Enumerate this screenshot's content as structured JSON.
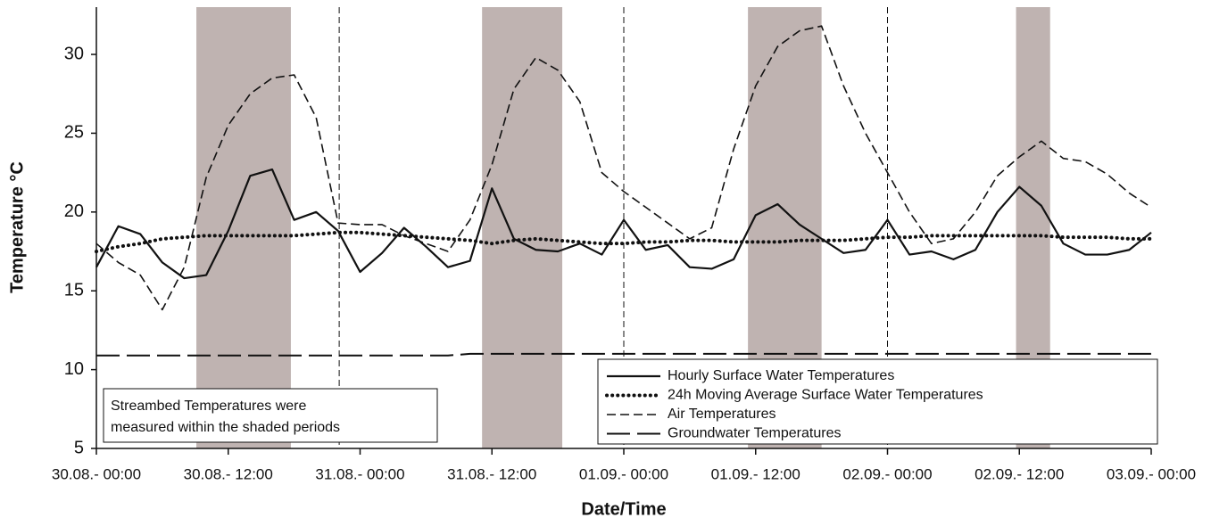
{
  "chart_data": {
    "type": "line",
    "xlabel": "Date/Time",
    "ylabel": "Temperature °C",
    "x": [
      0,
      2,
      4,
      6,
      8,
      10,
      12,
      14,
      16,
      18,
      20,
      22,
      24,
      26,
      28,
      30,
      32,
      34,
      36,
      38,
      40,
      42,
      44,
      46,
      48,
      50,
      52,
      54,
      56,
      58,
      60,
      62,
      64,
      66,
      68,
      70,
      72,
      74,
      76,
      78,
      80,
      82,
      84,
      86,
      88,
      90,
      92,
      94,
      96
    ],
    "series": [
      {
        "name": "Hourly Surface Water Temperatures",
        "color": "#111111",
        "style": "solid",
        "values": [
          16.5,
          19.1,
          18.6,
          16.8,
          15.8,
          16.0,
          18.8,
          22.3,
          22.7,
          19.5,
          20.0,
          18.8,
          16.2,
          17.4,
          19.0,
          17.8,
          16.5,
          16.9,
          21.5,
          18.3,
          17.6,
          17.5,
          18.0,
          17.3,
          19.5,
          17.6,
          17.9,
          16.5,
          16.4,
          17.0,
          19.8,
          20.5,
          19.2,
          18.3,
          17.4,
          17.6,
          19.5,
          17.3,
          17.5,
          17.0,
          17.6,
          20.0,
          21.6,
          20.4,
          18.0,
          17.3,
          17.3,
          17.6,
          18.7
        ]
      },
      {
        "name": "24h Moving Average Surface Water Temperatures",
        "color": "#111111",
        "style": "dotted",
        "values": [
          17.5,
          17.8,
          18.0,
          18.3,
          18.4,
          18.5,
          18.5,
          18.5,
          18.5,
          18.5,
          18.6,
          18.7,
          18.7,
          18.6,
          18.5,
          18.4,
          18.3,
          18.2,
          18.0,
          18.2,
          18.3,
          18.2,
          18.1,
          18.0,
          18.0,
          18.1,
          18.1,
          18.2,
          18.2,
          18.1,
          18.1,
          18.1,
          18.2,
          18.2,
          18.2,
          18.3,
          18.4,
          18.4,
          18.5,
          18.5,
          18.5,
          18.5,
          18.5,
          18.5,
          18.4,
          18.4,
          18.4,
          18.3,
          18.3
        ]
      },
      {
        "name": "Air Temperatures",
        "color": "#111111",
        "style": "dashed",
        "values": [
          18.0,
          16.8,
          16.0,
          13.8,
          16.5,
          22.2,
          25.5,
          27.5,
          28.5,
          28.7,
          26.0,
          19.3,
          19.2,
          19.2,
          18.5,
          18.0,
          17.5,
          19.5,
          23.0,
          27.8,
          29.8,
          29.0,
          27.0,
          22.5,
          21.3,
          20.3,
          19.3,
          18.3,
          19.0,
          24.0,
          28.0,
          30.5,
          31.5,
          31.8,
          28.0,
          25.0,
          22.5,
          20.0,
          18.0,
          18.3,
          20.0,
          22.3,
          23.5,
          24.5,
          23.4,
          23.2,
          22.4,
          21.2,
          20.3
        ]
      },
      {
        "name": "Groundwater Temperatures",
        "color": "#111111",
        "style": "long-dashed",
        "values": [
          10.9,
          10.9,
          10.9,
          10.9,
          10.9,
          10.9,
          10.9,
          10.9,
          10.9,
          10.9,
          10.9,
          10.9,
          10.9,
          10.9,
          10.9,
          10.9,
          10.9,
          11.0,
          11.0,
          11.0,
          11.0,
          11.0,
          11.0,
          11.0,
          11.0,
          11.0,
          11.0,
          11.0,
          11.0,
          11.0,
          11.0,
          11.0,
          11.0,
          11.0,
          11.0,
          11.0,
          11.0,
          11.0,
          11.0,
          11.0,
          11.0,
          11.0,
          11.0,
          11.0,
          11.0,
          11.0,
          11.0,
          11.0,
          11.0
        ]
      }
    ],
    "shaded_periods": [
      [
        9.1,
        17.7
      ],
      [
        35.1,
        42.4
      ],
      [
        59.3,
        66.0
      ],
      [
        83.7,
        86.8
      ]
    ],
    "shade_color": "#bfb3b1",
    "vertical_lines": [
      22.1,
      48,
      72
    ],
    "annotation": [
      "Streambed Temperatures were",
      "measured within the shaded periods"
    ],
    "xlim": [
      0,
      96
    ],
    "xticks": [
      {
        "value": 0,
        "label": "30.08.- 00:00"
      },
      {
        "value": 12,
        "label": "30.08.- 12:00"
      },
      {
        "value": 24,
        "label": "31.08.- 00:00"
      },
      {
        "value": 36,
        "label": "31.08.- 12:00"
      },
      {
        "value": 48,
        "label": "01.09.- 00:00"
      },
      {
        "value": 60,
        "label": "01.09.- 12:00"
      },
      {
        "value": 72,
        "label": "02.09.- 00:00"
      },
      {
        "value": 84,
        "label": "02.09.- 12:00"
      },
      {
        "value": 96,
        "label": "03.09.- 00:00"
      }
    ],
    "ylim": [
      5,
      33
    ],
    "yticks": [
      5,
      10,
      15,
      20,
      25,
      30
    ],
    "legend": "lower right"
  }
}
